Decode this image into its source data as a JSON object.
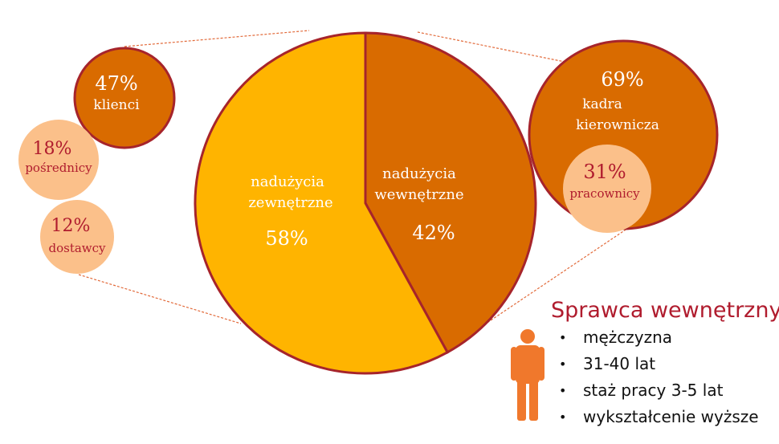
{
  "chart_data": {
    "type": "pie",
    "title": "",
    "main_pie": {
      "slices": [
        {
          "label": "nadużycia wewnętrzne",
          "value": 42,
          "value_label": "42%",
          "color": "#d96b00"
        },
        {
          "label": "nadużycia zewnętrzne",
          "value": 58,
          "value_label": "58%",
          "color": "#ffb400"
        }
      ]
    },
    "external_breakdown": [
      {
        "label": "klienci",
        "value": 47,
        "value_label": "47%",
        "color": "#d96b00"
      },
      {
        "label": "pośrednicy",
        "value": 18,
        "value_label": "18%",
        "color": "#fbc08a"
      },
      {
        "label": "dostawcy",
        "value": 12,
        "value_label": "12%",
        "color": "#fbc08a"
      }
    ],
    "internal_breakdown": [
      {
        "label": "kadra kierownicza",
        "value": 69,
        "value_label": "69%",
        "color": "#d96b00"
      },
      {
        "label": "pracownicy",
        "value": 31,
        "value_label": "31%",
        "color": "#fbc08a"
      }
    ],
    "colors": {
      "outline": "#a6242b",
      "connector": "#e26a3a",
      "light_text": "#ffffff",
      "dark_text": "#b01c2e"
    }
  },
  "profile": {
    "title": "Sprawca wewnętrzny",
    "icon": "person-icon",
    "icon_color": "#f0782c",
    "bullet": "•",
    "items": [
      "mężczyzna",
      "31-40 lat",
      "staż pracy 3-5 lat",
      "wykształcenie wyższe"
    ]
  }
}
